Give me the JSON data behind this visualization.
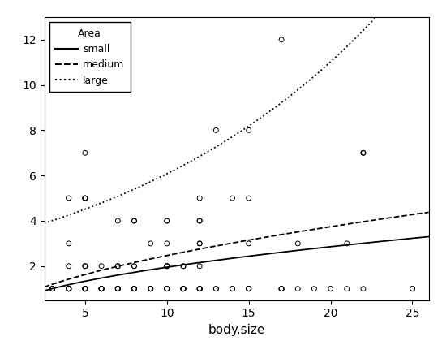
{
  "title": "",
  "xlabel": "body.size",
  "ylabel": "",
  "xlim": [
    2.5,
    26
  ],
  "ylim": [
    0.5,
    13.0
  ],
  "yticks": [
    2,
    4,
    6,
    8,
    10,
    12
  ],
  "xticks": [
    5,
    10,
    15,
    20,
    25
  ],
  "legend_title": "Area",
  "legend_labels": [
    "small",
    "medium",
    "large"
  ],
  "legend_styles": [
    "solid",
    "dashed",
    "dotted"
  ],
  "scatter_x": [
    3,
    3,
    3,
    3,
    4,
    4,
    4,
    4,
    4,
    4,
    4,
    4,
    4,
    4,
    4,
    4,
    4,
    5,
    5,
    5,
    5,
    5,
    5,
    5,
    5,
    5,
    5,
    5,
    5,
    5,
    5,
    5,
    6,
    6,
    6,
    6,
    6,
    6,
    6,
    7,
    7,
    7,
    7,
    7,
    7,
    7,
    7,
    7,
    8,
    8,
    8,
    8,
    8,
    8,
    8,
    8,
    8,
    9,
    9,
    9,
    9,
    9,
    9,
    9,
    10,
    10,
    10,
    10,
    10,
    10,
    10,
    10,
    10,
    10,
    11,
    11,
    11,
    11,
    11,
    11,
    11,
    11,
    12,
    12,
    12,
    12,
    12,
    12,
    12,
    12,
    12,
    12,
    12,
    13,
    13,
    13,
    14,
    14,
    14,
    15,
    15,
    15,
    15,
    15,
    15,
    15,
    15,
    17,
    17,
    17,
    17,
    18,
    18,
    19,
    20,
    20,
    21,
    21,
    22,
    22,
    22,
    25,
    25
  ],
  "scatter_y": [
    1,
    1,
    1,
    1,
    1,
    1,
    1,
    1,
    1,
    1,
    1,
    1,
    1,
    2,
    3,
    5,
    5,
    1,
    1,
    1,
    1,
    1,
    1,
    1,
    1,
    1,
    2,
    2,
    5,
    5,
    7,
    5,
    1,
    1,
    1,
    2,
    1,
    1,
    1,
    1,
    1,
    1,
    1,
    1,
    1,
    2,
    2,
    4,
    1,
    1,
    1,
    1,
    1,
    2,
    2,
    4,
    4,
    1,
    1,
    1,
    1,
    1,
    1,
    3,
    1,
    1,
    1,
    1,
    2,
    2,
    2,
    3,
    4,
    4,
    1,
    1,
    1,
    1,
    1,
    1,
    2,
    2,
    1,
    1,
    1,
    1,
    1,
    2,
    3,
    3,
    4,
    4,
    5,
    1,
    1,
    8,
    1,
    1,
    5,
    1,
    1,
    1,
    1,
    1,
    3,
    5,
    8,
    1,
    1,
    1,
    12,
    1,
    3,
    1,
    1,
    1,
    1,
    3,
    1,
    7,
    7,
    1,
    1
  ],
  "curve_small_a": 0.55,
  "curve_small_b": 0.55,
  "curve_medium_a": 0.62,
  "curve_medium_b": 0.6,
  "curve_large_a": 1.21,
  "curve_large_b": 0.0595,
  "line_color": "black",
  "scatter_color": "none",
  "scatter_edgecolor": "black",
  "scatter_size": 18,
  "scatter_lw": 0.7,
  "bg_color": "white",
  "spine_color": "black",
  "tick_labelsize": 10,
  "xlabel_fontsize": 11,
  "legend_fontsize": 9,
  "legend_title_fontsize": 9,
  "linewidth_small": 1.3,
  "linewidth_medium": 1.3,
  "linewidth_large": 1.3
}
